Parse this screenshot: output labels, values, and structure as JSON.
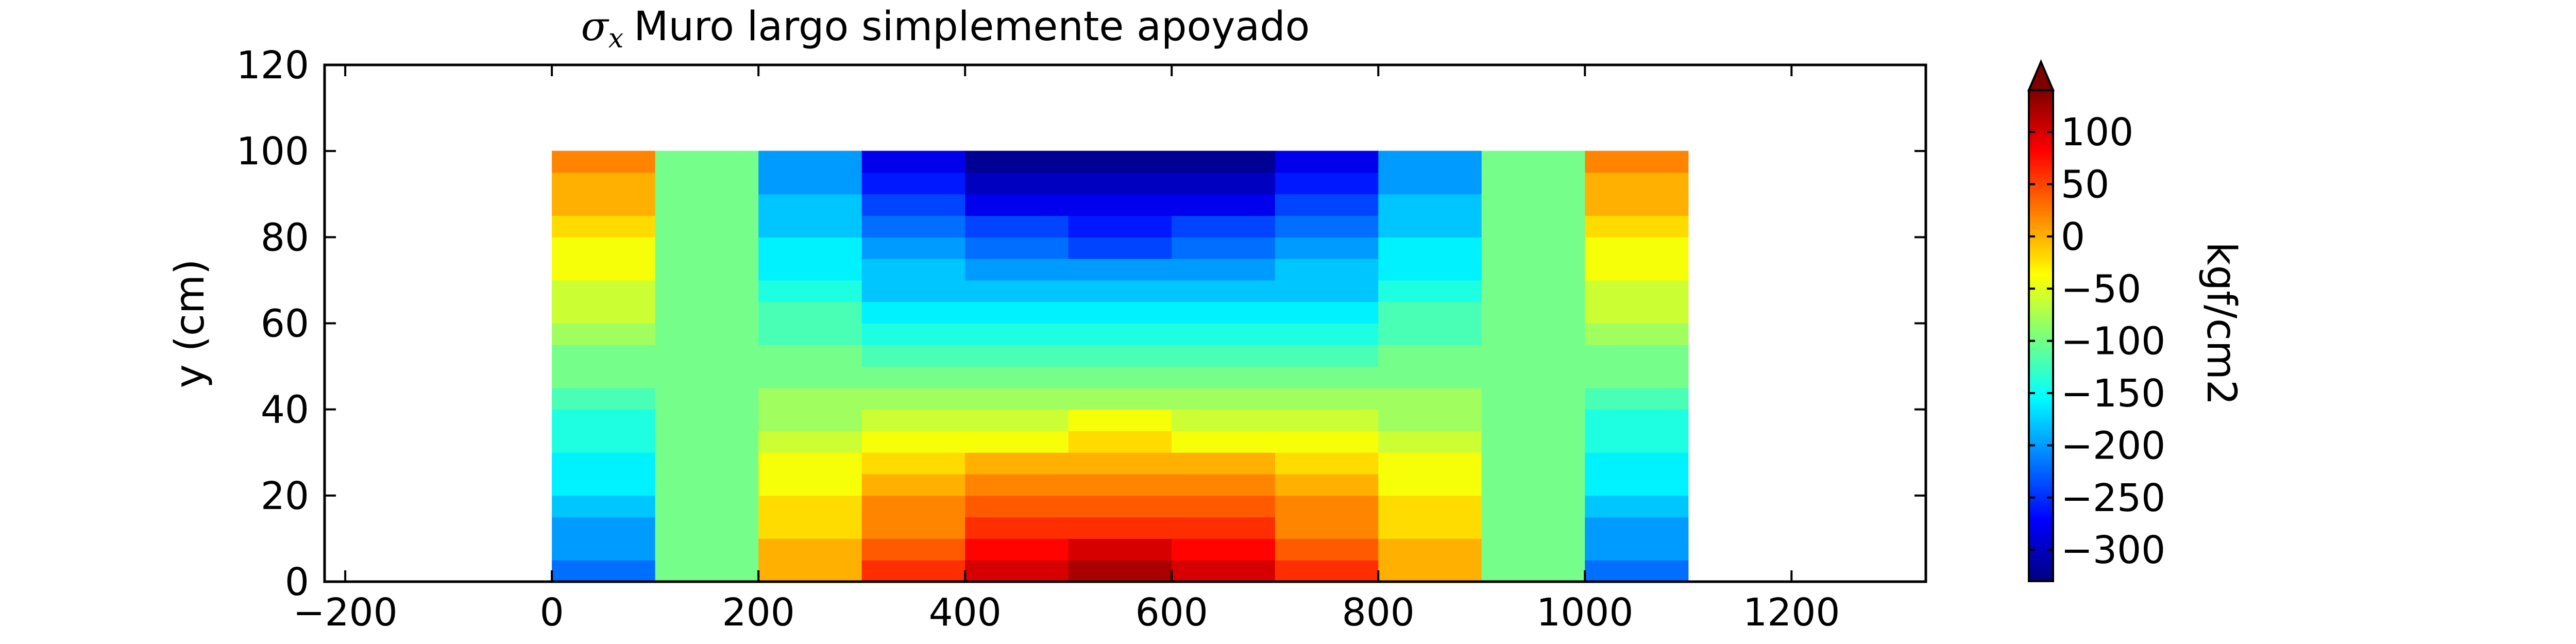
{
  "chart_data": {
    "type": "heatmap",
    "title_symbol": "σ",
    "title_symbol_sub": "x",
    "title_text": "Muro largo simplemente apoyado",
    "xlabel": "",
    "ylabel": "y (cm)",
    "xlim": [
      -220,
      1330
    ],
    "ylim": [
      0,
      120
    ],
    "xticks": [
      -200,
      0,
      200,
      400,
      600,
      800,
      1000,
      1200
    ],
    "yticks": [
      0,
      20,
      40,
      60,
      80,
      100,
      120
    ],
    "xtick_labels": [
      "−200",
      "0",
      "200",
      "400",
      "600",
      "800",
      "1000",
      "1200"
    ],
    "ytick_labels": [
      "0",
      "20",
      "40",
      "60",
      "80",
      "100",
      "120"
    ],
    "colorbar": {
      "label": "kgf/cm2",
      "colormap": "jet",
      "extend": "max",
      "range": [
        -330,
        140
      ],
      "ticks": [
        100,
        50,
        0,
        -50,
        -100,
        -150,
        -200,
        -250,
        -300
      ],
      "tick_labels": [
        "100",
        "50",
        "0",
        "−50",
        "−100",
        "−150",
        "−200",
        "−250",
        "−300"
      ]
    },
    "columns": [
      {
        "x": [
          0,
          100
        ],
        "top": 25,
        "bottom": -225
      },
      {
        "x": [
          100,
          200
        ],
        "top": -100,
        "bottom": -100
      },
      {
        "x": [
          200,
          300
        ],
        "top": -215,
        "bottom": 15
      },
      {
        "x": [
          300,
          400
        ],
        "top": -290,
        "bottom": 75
      },
      {
        "x": [
          400,
          500
        ],
        "top": -325,
        "bottom": 110
      },
      {
        "x": [
          500,
          600
        ],
        "top": -335,
        "bottom": 125
      },
      {
        "x": [
          600,
          700
        ],
        "top": -325,
        "bottom": 110
      },
      {
        "x": [
          700,
          800
        ],
        "top": -290,
        "bottom": 75
      },
      {
        "x": [
          800,
          900
        ],
        "top": -215,
        "bottom": 15
      },
      {
        "x": [
          900,
          1000
        ],
        "top": -100,
        "bottom": -100
      },
      {
        "x": [
          1000,
          1100
        ],
        "top": 25,
        "bottom": -225
      }
    ],
    "wall_height": 100
  }
}
